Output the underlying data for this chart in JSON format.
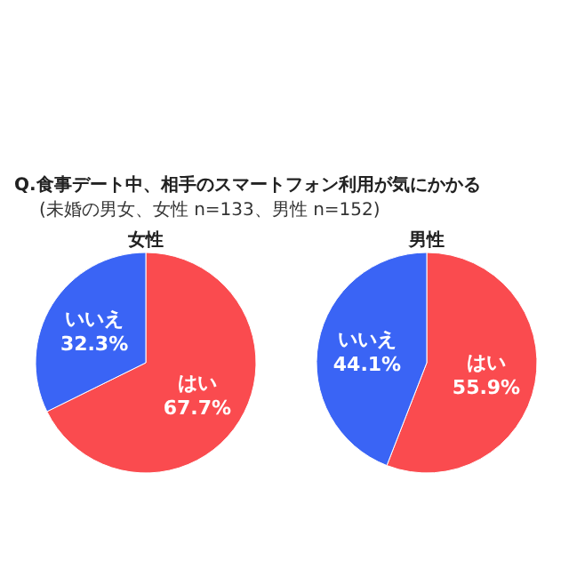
{
  "chart_data": [
    {
      "type": "pie",
      "title": "Q.食事デート中、相手のスマートフォン利用が気にかかる",
      "subtitle": "(未婚の男女、女性 n=133、男性 n=152)",
      "xlabel": "女性",
      "categories": [
        "はい",
        "いいえ"
      ],
      "values": [
        67.7,
        32.3
      ],
      "value_labels": [
        "67.7%",
        "32.3%"
      ],
      "colors": [
        "#fa4b4f",
        "#3a64f5"
      ]
    },
    {
      "type": "pie",
      "xlabel": "男性",
      "categories": [
        "はい",
        "いいえ"
      ],
      "values": [
        55.9,
        44.1
      ],
      "value_labels": [
        "55.9%",
        "44.1%"
      ],
      "colors": [
        "#fa4b4f",
        "#3a64f5"
      ]
    }
  ]
}
